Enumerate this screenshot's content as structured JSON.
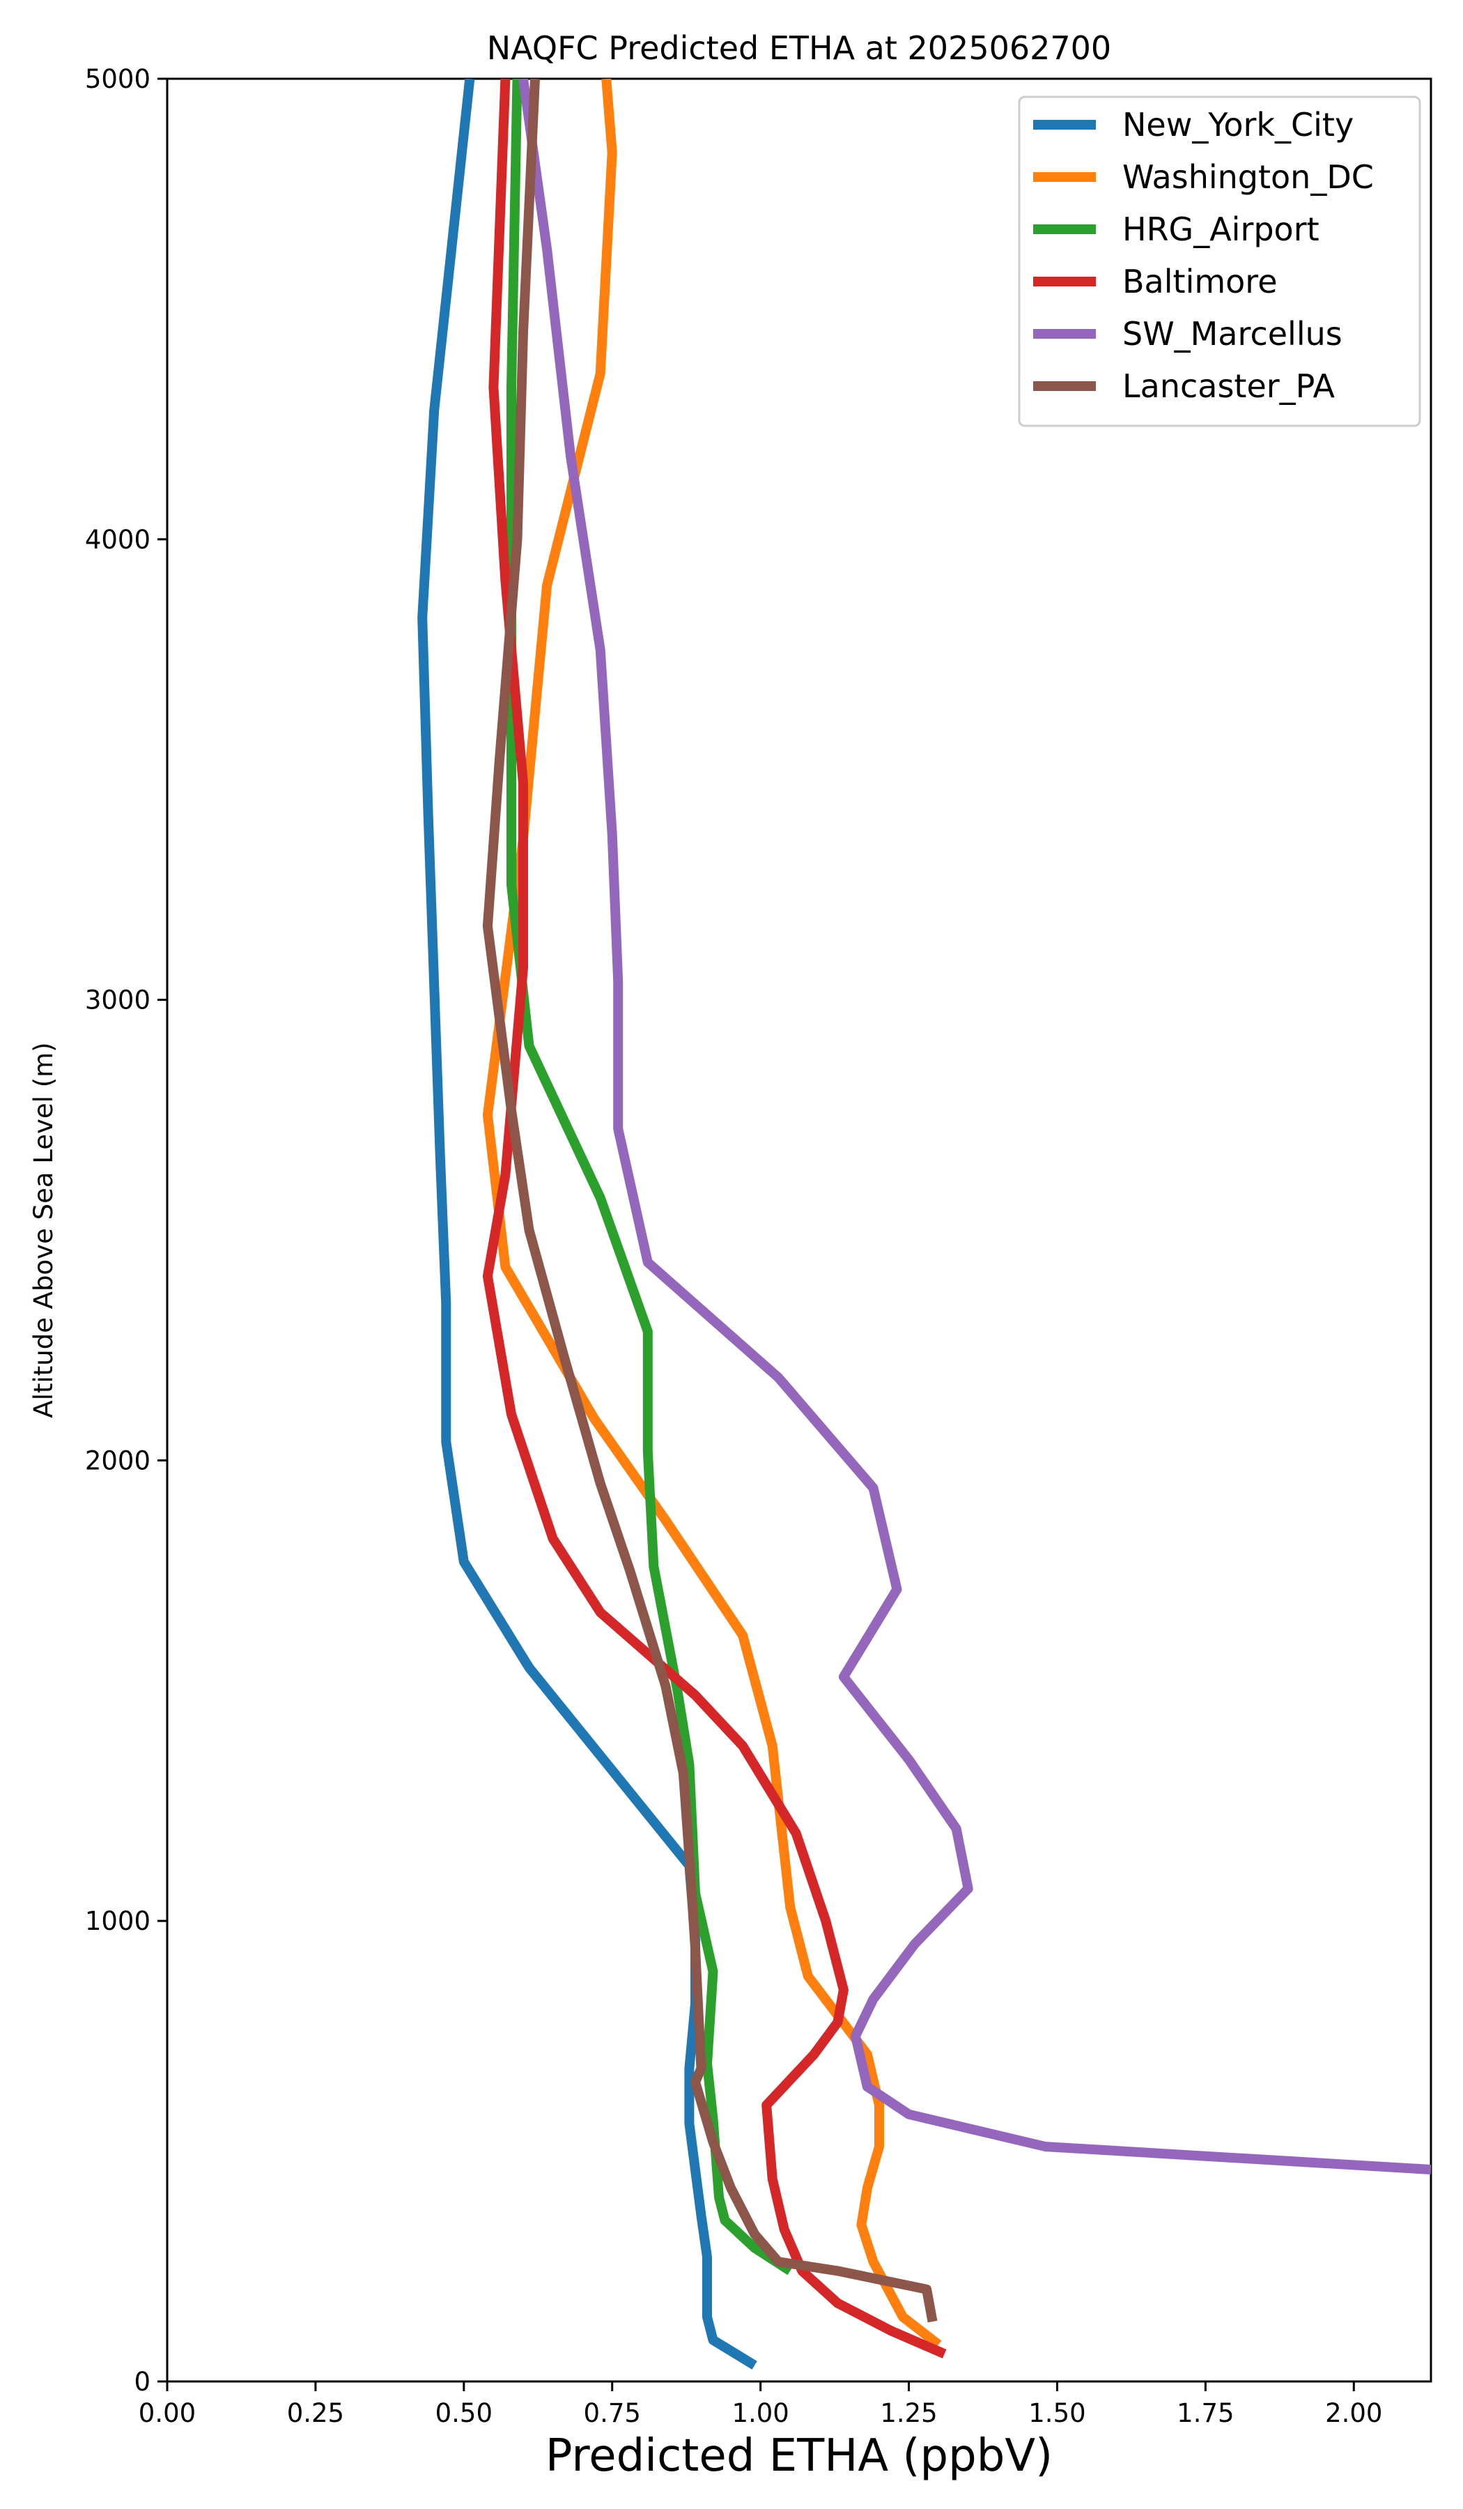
{
  "chart_data": {
    "type": "line",
    "title": "NAQFC Predicted ETHA at 2025062700",
    "xlabel": "Predicted ETHA (ppbV)",
    "ylabel": "Altitude Above Sea Level (m)",
    "xlim": [
      0,
      2.13
    ],
    "ylim": [
      0,
      5000
    ],
    "xticks": [
      "0.00",
      "0.25",
      "0.50",
      "0.75",
      "1.00",
      "1.25",
      "1.50",
      "1.75",
      "2.00"
    ],
    "yticks": [
      "0",
      "1000",
      "2000",
      "3000",
      "4000",
      "5000"
    ],
    "grid": false,
    "legend_position": "top-right",
    "series": [
      {
        "name": "New_York_City",
        "color": "#1f77b4",
        "points": [
          [
            0.99,
            35
          ],
          [
            0.92,
            90
          ],
          [
            0.91,
            140
          ],
          [
            0.91,
            270
          ],
          [
            0.9,
            360
          ],
          [
            0.88,
            560
          ],
          [
            0.88,
            680
          ],
          [
            0.89,
            820
          ],
          [
            0.89,
            960
          ],
          [
            0.88,
            1120
          ],
          [
            0.61,
            1550
          ],
          [
            0.5,
            1780
          ],
          [
            0.47,
            2040
          ],
          [
            0.47,
            2340
          ],
          [
            0.46,
            2660
          ],
          [
            0.44,
            3400
          ],
          [
            0.43,
            3830
          ],
          [
            0.45,
            4280
          ],
          [
            0.51,
            5000
          ]
        ]
      },
      {
        "name": "Washington_DC",
        "color": "#ff7f0e",
        "points": [
          [
            1.3,
            80
          ],
          [
            1.24,
            140
          ],
          [
            1.19,
            260
          ],
          [
            1.17,
            340
          ],
          [
            1.18,
            420
          ],
          [
            1.2,
            510
          ],
          [
            1.2,
            600
          ],
          [
            1.18,
            710
          ],
          [
            1.08,
            880
          ],
          [
            1.05,
            1030
          ],
          [
            1.02,
            1380
          ],
          [
            0.97,
            1620
          ],
          [
            0.84,
            1870
          ],
          [
            0.72,
            2090
          ],
          [
            0.57,
            2420
          ],
          [
            0.54,
            2750
          ],
          [
            0.6,
            3350
          ],
          [
            0.64,
            3900
          ],
          [
            0.73,
            4360
          ],
          [
            0.75,
            4840
          ],
          [
            0.74,
            5000
          ]
        ]
      },
      {
        "name": "HRG_Airport",
        "color": "#2ca02c",
        "points": [
          [
            1.05,
            240
          ],
          [
            0.99,
            290
          ],
          [
            0.94,
            350
          ],
          [
            0.93,
            400
          ],
          [
            0.92,
            570
          ],
          [
            0.91,
            690
          ],
          [
            0.92,
            890
          ],
          [
            0.89,
            1060
          ],
          [
            0.88,
            1340
          ],
          [
            0.86,
            1500
          ],
          [
            0.82,
            1770
          ],
          [
            0.81,
            2020
          ],
          [
            0.81,
            2280
          ],
          [
            0.73,
            2570
          ],
          [
            0.61,
            2900
          ],
          [
            0.58,
            3250
          ],
          [
            0.58,
            4330
          ],
          [
            0.59,
            5000
          ]
        ]
      },
      {
        "name": "Baltimore",
        "color": "#d62728",
        "points": [
          [
            1.31,
            60
          ],
          [
            1.22,
            110
          ],
          [
            1.13,
            170
          ],
          [
            1.07,
            240
          ],
          [
            1.04,
            330
          ],
          [
            1.02,
            440
          ],
          [
            1.01,
            600
          ],
          [
            1.09,
            710
          ],
          [
            1.13,
            780
          ],
          [
            1.14,
            850
          ],
          [
            1.11,
            1000
          ],
          [
            1.06,
            1190
          ],
          [
            0.97,
            1380
          ],
          [
            0.89,
            1490
          ],
          [
            0.73,
            1670
          ],
          [
            0.65,
            1830
          ],
          [
            0.58,
            2100
          ],
          [
            0.54,
            2400
          ],
          [
            0.57,
            2620
          ],
          [
            0.6,
            3070
          ],
          [
            0.6,
            3470
          ],
          [
            0.57,
            3910
          ],
          [
            0.55,
            4330
          ],
          [
            0.57,
            5000
          ]
        ]
      },
      {
        "name": "SW_Marcellus",
        "color": "#9467bd",
        "points": [
          [
            2.13,
            460
          ],
          [
            1.48,
            510
          ],
          [
            1.25,
            580
          ],
          [
            1.18,
            640
          ],
          [
            1.16,
            750
          ],
          [
            1.19,
            830
          ],
          [
            1.26,
            950
          ],
          [
            1.35,
            1070
          ],
          [
            1.33,
            1200
          ],
          [
            1.25,
            1350
          ],
          [
            1.14,
            1530
          ],
          [
            1.23,
            1720
          ],
          [
            1.19,
            1940
          ],
          [
            1.03,
            2180
          ],
          [
            0.81,
            2430
          ],
          [
            0.76,
            2720
          ],
          [
            0.76,
            3040
          ],
          [
            0.75,
            3360
          ],
          [
            0.73,
            3760
          ],
          [
            0.68,
            4180
          ],
          [
            0.64,
            4630
          ],
          [
            0.6,
            5000
          ]
        ]
      },
      {
        "name": "Lancaster_PA",
        "color": "#8c564b",
        "points": [
          [
            1.29,
            130
          ],
          [
            1.28,
            200
          ],
          [
            1.13,
            240
          ],
          [
            1.03,
            260
          ],
          [
            0.99,
            320
          ],
          [
            0.95,
            420
          ],
          [
            0.92,
            520
          ],
          [
            0.89,
            650
          ],
          [
            0.9,
            680
          ],
          [
            0.89,
            940
          ],
          [
            0.88,
            1140
          ],
          [
            0.87,
            1320
          ],
          [
            0.84,
            1510
          ],
          [
            0.78,
            1760
          ],
          [
            0.73,
            1950
          ],
          [
            0.67,
            2220
          ],
          [
            0.61,
            2500
          ],
          [
            0.58,
            2760
          ],
          [
            0.54,
            3160
          ],
          [
            0.56,
            3520
          ],
          [
            0.59,
            4000
          ],
          [
            0.6,
            4450
          ],
          [
            0.62,
            5000
          ]
        ]
      }
    ]
  }
}
